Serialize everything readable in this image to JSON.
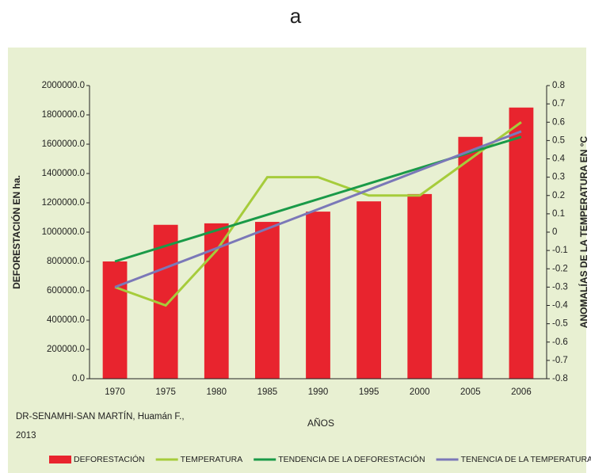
{
  "chart_data": {
    "type": "bar",
    "title": "a",
    "x_label": "AÑOS",
    "y_label": "DEFORESTACIÓN EN ha.",
    "y2_label": "ANOMALÍAS DE LA TEMPERATURA EN °C",
    "source": [
      "DR-SENAMHI-SAN MARTÍN, Huamán F.,",
      "2013"
    ],
    "categories": [
      "1970",
      "1975",
      "1980",
      "1985",
      "1990",
      "1995",
      "2000",
      "2005",
      "2006"
    ],
    "series": [
      {
        "name": "DEFORESTACIÓN",
        "type": "bar",
        "color": "#e8242e",
        "values": [
          800000,
          1050000,
          1060000,
          1070000,
          1140000,
          1210000,
          1260000,
          1650000,
          1850000
        ]
      },
      {
        "name": "TEMPERATURA",
        "type": "line",
        "axis": "y2",
        "color": "#a6cc3b",
        "values": [
          -0.3,
          -0.4,
          -0.1,
          0.3,
          0.3,
          0.2,
          0.2,
          0.4,
          0.6
        ]
      },
      {
        "name": "TENDENCIA DE LA DEFORESTACIÓN",
        "type": "line",
        "color": "#1a9a48",
        "values": [
          800000,
          906250,
          1012500,
          1118750,
          1225000,
          1331250,
          1437500,
          1543750,
          1650000
        ]
      },
      {
        "name": "TENENCIA DE LA TEMPERATURA",
        "type": "line",
        "axis": "y2",
        "color": "#7b78b8",
        "values": [
          -0.3,
          -0.194,
          -0.088,
          0.019,
          0.125,
          0.231,
          0.338,
          0.444,
          0.55
        ]
      }
    ],
    "ylim": [
      0,
      2000000
    ],
    "yticks": [
      {
        "value": 0,
        "label": "0.0"
      },
      {
        "value": 200000,
        "label": "200000.0"
      },
      {
        "value": 400000,
        "label": "400000.0"
      },
      {
        "value": 600000,
        "label": "600000.0"
      },
      {
        "value": 800000,
        "label": "800000.0"
      },
      {
        "value": 1000000,
        "label": "1000000.0"
      },
      {
        "value": 1200000,
        "label": "1200000.0"
      },
      {
        "value": 1400000,
        "label": "1400000.0"
      },
      {
        "value": 1600000,
        "label": "1600000.0"
      },
      {
        "value": 1800000,
        "label": "1800000.0"
      },
      {
        "value": 2000000,
        "label": "2000000.0"
      }
    ],
    "y2lim": [
      -0.8,
      0.8
    ],
    "y2ticks": [
      -0.8,
      -0.7,
      -0.6,
      -0.5,
      -0.4,
      -0.3,
      -0.2,
      -0.1,
      0,
      0.1,
      0.2,
      0.3,
      0.4,
      0.5,
      0.6,
      0.7,
      0.8
    ],
    "grid": false,
    "legend": "bottom"
  }
}
